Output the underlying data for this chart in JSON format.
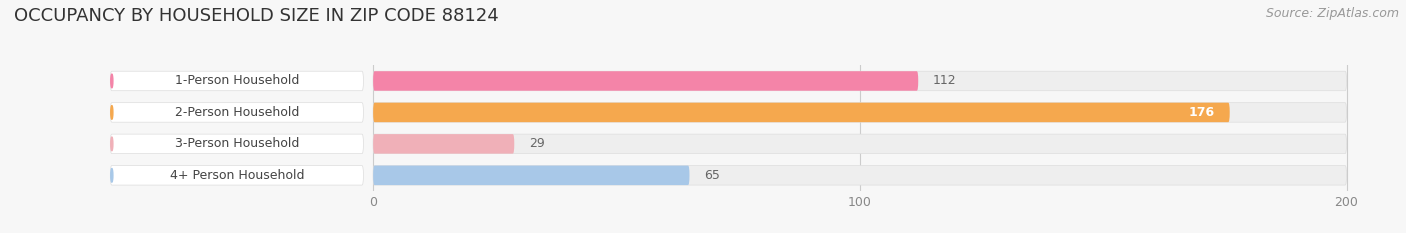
{
  "title": "OCCUPANCY BY HOUSEHOLD SIZE IN ZIP CODE 88124",
  "source": "Source: ZipAtlas.com",
  "categories": [
    "1-Person Household",
    "2-Person Household",
    "3-Person Household",
    "4+ Person Household"
  ],
  "values": [
    112,
    176,
    29,
    65
  ],
  "bar_colors": [
    "#f484a8",
    "#f5a84e",
    "#f0b0b8",
    "#a8c8e8"
  ],
  "bar_bg_colors": [
    "#eeeeee",
    "#eeeeee",
    "#eeeeee",
    "#eeeeee"
  ],
  "value_text_colors": [
    "#555555",
    "#ffffff",
    "#555555",
    "#555555"
  ],
  "xlim_data": [
    0,
    200
  ],
  "xaxis_max": 200,
  "xticks": [
    0,
    100,
    200
  ],
  "title_fontsize": 13,
  "source_fontsize": 9,
  "label_fontsize": 9,
  "value_fontsize": 9,
  "background_color": "#f7f7f7",
  "bar_height": 0.62,
  "bar_gap": 0.08
}
